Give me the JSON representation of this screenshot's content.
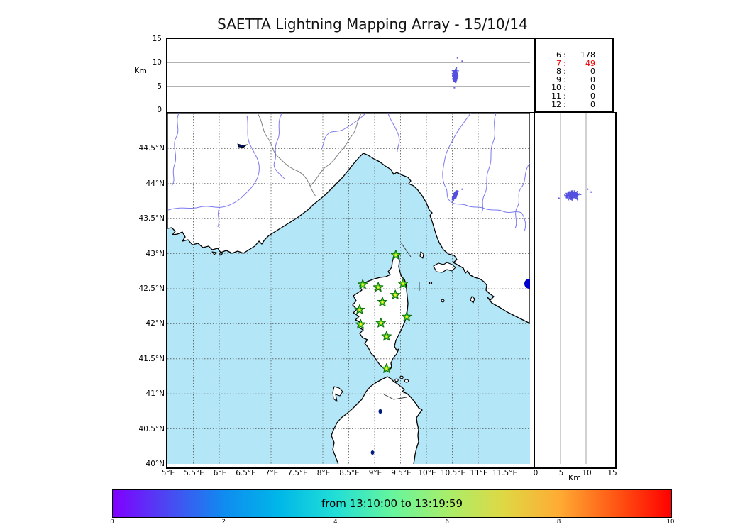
{
  "title": "SAETTA Lightning Mapping Array - 15/10/14",
  "altitude_axis": {
    "unit_label": "Km",
    "ticks": [
      "0",
      "5",
      "10",
      "15"
    ]
  },
  "stats_panel": {
    "rows": [
      {
        "hour": "6",
        "count": "178",
        "highlight": false
      },
      {
        "hour": "7",
        "count": "49",
        "highlight": true
      },
      {
        "hour": "8",
        "count": "0",
        "highlight": false
      },
      {
        "hour": "9",
        "count": "0",
        "highlight": false
      },
      {
        "hour": "10",
        "count": "0",
        "highlight": false
      },
      {
        "hour": "11",
        "count": "0",
        "highlight": false
      },
      {
        "hour": "12",
        "count": "0",
        "highlight": false
      }
    ],
    "highlight_color": "#ee0000"
  },
  "map_axes": {
    "lat_ticks": [
      "44.5°N",
      "44°N",
      "43.5°N",
      "43°N",
      "42.5°N",
      "42°N",
      "41.5°N",
      "41°N",
      "40.5°N",
      "40°N"
    ],
    "lat_values": [
      44.5,
      44,
      43.5,
      43,
      42.5,
      42,
      41.5,
      41,
      40.5,
      40
    ],
    "lon_ticks": [
      "5°E",
      "5.5°E",
      "6°E",
      "6.5°E",
      "7°E",
      "7.5°E",
      "8°E",
      "8.5°E",
      "9°E",
      "9.5°E",
      "10°E",
      "10.5°E",
      "11°E",
      "11.5°E"
    ],
    "lon_values": [
      5,
      5.5,
      6,
      6.5,
      7,
      7.5,
      8,
      8.5,
      9,
      9.5,
      10,
      10.5,
      11,
      11.5
    ]
  },
  "right_axis": {
    "unit_label": "Km",
    "ticks": [
      "0",
      "5",
      "10",
      "15"
    ],
    "tick_values": [
      0,
      5,
      10,
      15
    ]
  },
  "colorbar": {
    "label": "from 13:10:00 to 13:19:59",
    "ticks": [
      "0",
      "2",
      "4",
      "6",
      "8",
      "10"
    ],
    "tick_values": [
      0,
      2,
      4,
      6,
      8,
      10
    ],
    "range": [
      0,
      10
    ],
    "gradient": [
      "#8000ff",
      "#4a49f2",
      "#0f8cf0",
      "#00b8e8",
      "#22dfd5",
      "#66f59e",
      "#a8ee6a",
      "#dfd844",
      "#ffab33",
      "#ff5714",
      "#ff0000"
    ]
  },
  "colors": {
    "sea": "#b3e6f7",
    "land": "#ffffff",
    "coast": "#000000",
    "river": "#7b7bef",
    "country_border": "#808080",
    "grid": "#555555",
    "lightning": "#5350e0",
    "station_fill": "#55d91f",
    "station_edge": "#0d6f0d",
    "station_center": "#ffe926",
    "lake": "#0000cc"
  },
  "chart_data": {
    "type": "scatter",
    "title": "SAETTA Lightning Mapping Array - 15/10/14",
    "time_window": "from 13:10:00 to 13:19:59",
    "panels": {
      "top": {
        "x": "longitude_deg_E",
        "xlim": [
          5,
          12
        ],
        "y": "altitude_km",
        "ylim": [
          0,
          15
        ],
        "gridlines_km": [
          5,
          10
        ]
      },
      "map": {
        "x": "longitude_deg_E",
        "xlim": [
          5,
          12
        ],
        "y": "latitude_deg_N",
        "ylim": [
          40,
          45
        ],
        "grid_step_deg": 0.5
      },
      "right": {
        "x": "altitude_km",
        "xlim": [
          0,
          15
        ],
        "y": "latitude_deg_N",
        "ylim": [
          40,
          45
        ],
        "gridlines_km": [
          5,
          10
        ]
      }
    },
    "source_counts": [
      [
        "6",
        178
      ],
      [
        "7",
        49
      ],
      [
        "8",
        0
      ],
      [
        "9",
        0
      ],
      [
        "10",
        0
      ],
      [
        "11",
        0
      ],
      [
        "12",
        0
      ]
    ],
    "colorbar_range": [
      0,
      10
    ],
    "lma_stations_lon_lat": [
      [
        9.41,
        42.98
      ],
      [
        8.77,
        42.56
      ],
      [
        9.07,
        42.52
      ],
      [
        9.55,
        42.57
      ],
      [
        9.4,
        42.41
      ],
      [
        9.15,
        42.31
      ],
      [
        8.71,
        42.2
      ],
      [
        9.62,
        42.1
      ],
      [
        8.73,
        41.99
      ],
      [
        9.12,
        42.01
      ],
      [
        9.23,
        41.82
      ],
      [
        9.23,
        41.36
      ]
    ],
    "lightning_cluster": {
      "n_points": 227,
      "lon_center": 10.555,
      "lat_center": 43.835,
      "alt_km_center": 7.3,
      "lon_spread": 0.028,
      "lat_spread": 0.05,
      "alt_spread_km": 1.15,
      "tilt_lon_per_lat": 0.5,
      "alt_km_range": [
        4.8,
        9.7
      ],
      "outliers": [
        {
          "lon": 10.6,
          "lat": 43.88,
          "alt_km": 11.0
        },
        {
          "lon": 10.54,
          "lat": 43.79,
          "alt_km": 4.7
        },
        {
          "lon": 10.69,
          "lat": 43.92,
          "alt_km": 10.3
        }
      ]
    }
  }
}
